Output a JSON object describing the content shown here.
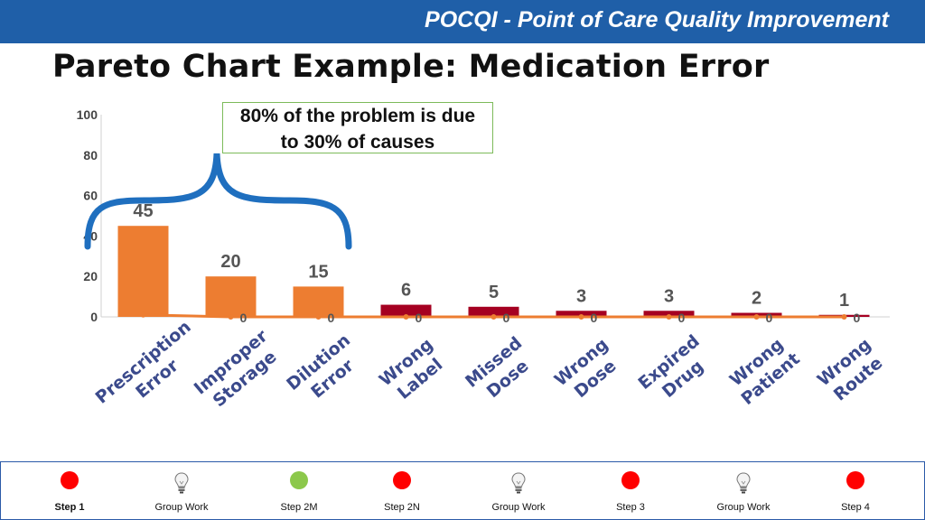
{
  "header": {
    "banner": "POCQI - Point of Care Quality Improvement"
  },
  "title": "Pareto Chart Example: Medication Error",
  "callout": {
    "line1": "80% of the problem is due",
    "line2": "to 30% of causes"
  },
  "colors": {
    "banner": "#1f5fa8",
    "bar_orange": "#ed7d31",
    "bar_red": "#a50021",
    "line": "#ed7d31",
    "brace": "#1f6fbf",
    "callout_border": "#7dbb5a"
  },
  "chart_data": {
    "type": "bar",
    "title": "",
    "categories": [
      [
        "Prescription",
        "Error"
      ],
      [
        "Improper",
        "Storage"
      ],
      [
        "Dilution",
        "Error"
      ],
      [
        "Wrong",
        "Label"
      ],
      [
        "Missed",
        "Dose"
      ],
      [
        "Wrong",
        "Dose"
      ],
      [
        "Expired",
        "Drug"
      ],
      [
        "Wrong",
        "Patient"
      ],
      [
        "Wrong",
        "Route"
      ]
    ],
    "values": [
      45,
      20,
      15,
      6,
      5,
      3,
      3,
      2,
      1
    ],
    "bar_colors": [
      "orange",
      "orange",
      "orange",
      "red",
      "red",
      "red",
      "red",
      "red",
      "red"
    ],
    "line_values": [
      1,
      0,
      0,
      0,
      0,
      0,
      0,
      0,
      0
    ],
    "line_labels": [
      "",
      "0",
      "0",
      "0",
      "0",
      "0",
      "0",
      "0",
      "0"
    ],
    "yticks": [
      0,
      20,
      40,
      60,
      80,
      100
    ],
    "ylim": [
      0,
      100
    ],
    "legend": "none",
    "grid": false
  },
  "footer": {
    "steps": [
      {
        "label": "Step 1",
        "icon": "red-dot",
        "bold": true
      },
      {
        "label": "Group Work",
        "icon": "lightbulb-icon",
        "bold": false
      },
      {
        "label": "Step 2M",
        "icon": "green-dot",
        "bold": false
      },
      {
        "label": "Step 2N",
        "icon": "red-dot",
        "bold": false
      },
      {
        "label": "Group Work",
        "icon": "lightbulb-icon",
        "bold": false
      },
      {
        "label": "Step 3",
        "icon": "red-dot",
        "bold": false
      },
      {
        "label": "Group Work",
        "icon": "lightbulb-icon",
        "bold": false
      },
      {
        "label": "Step 4",
        "icon": "red-dot",
        "bold": false
      }
    ]
  }
}
